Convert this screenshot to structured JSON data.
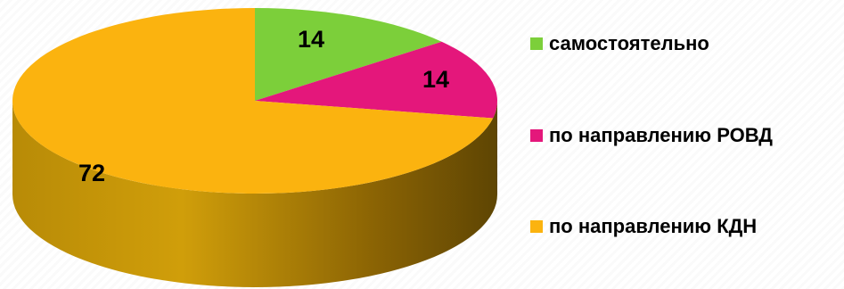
{
  "chart_data": {
    "type": "pie",
    "title": "",
    "categories": [
      "самостоятельно",
      "по направлению РОВД",
      "по направлению КДН"
    ],
    "values": [
      14,
      14,
      72
    ],
    "data_labels": [
      "14",
      "14",
      "72"
    ],
    "colors": [
      "#7ccf3a",
      "#e4177b",
      "#fbb30f"
    ],
    "side_colors": [
      "#5a9a28",
      "#a8105a",
      "#c48a06"
    ],
    "legend_placement": "right",
    "style": "3d"
  }
}
